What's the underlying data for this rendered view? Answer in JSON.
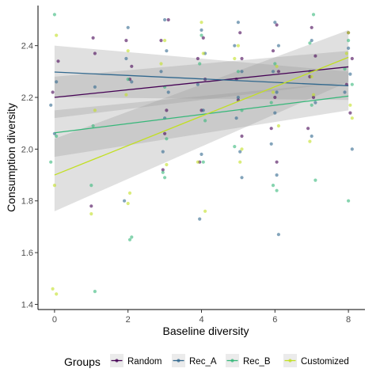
{
  "chart_data": {
    "type": "scatter",
    "title": "",
    "xlabel": "Baseline diversity",
    "ylabel": "Consumption diversity",
    "xlim": [
      -0.45,
      8.45
    ],
    "ylim": [
      1.38,
      2.555
    ],
    "x_ticks": [
      0,
      2,
      4,
      6,
      8
    ],
    "y_ticks": [
      1.4,
      1.6,
      1.8,
      2.0,
      2.2,
      2.4
    ],
    "y_tick_labels": [
      "1.4",
      "1.6",
      "1.8",
      "2.0",
      "2.2",
      "2.4"
    ],
    "grid": false,
    "legend": {
      "title": "Groups",
      "position": "bottom"
    },
    "series": [
      {
        "name": "Random",
        "color": "#440154",
        "fit": {
          "x": [
            0,
            8
          ],
          "y": [
            2.2,
            2.318
          ],
          "ci_low": [
            2.12,
            2.26
          ],
          "ci_high": [
            2.28,
            2.38
          ]
        },
        "points": [
          [
            0.1,
            2.34
          ],
          [
            -0.05,
            2.22
          ],
          [
            1.05,
            2.43
          ],
          [
            1.1,
            2.37
          ],
          [
            1.0,
            1.78
          ],
          [
            1.95,
            2.42
          ],
          [
            2.1,
            2.32
          ],
          [
            2.05,
            2.27
          ],
          [
            2.9,
            2.42
          ],
          [
            3.1,
            2.5
          ],
          [
            3.05,
            2.15
          ],
          [
            3.0,
            2.06
          ],
          [
            2.95,
            1.92
          ],
          [
            4.05,
            2.43
          ],
          [
            3.9,
            2.35
          ],
          [
            4.1,
            2.27
          ],
          [
            4.0,
            2.15
          ],
          [
            3.95,
            1.95
          ],
          [
            5.05,
            2.45
          ],
          [
            5.1,
            2.35
          ],
          [
            4.95,
            2.27
          ],
          [
            5.0,
            2.19
          ],
          [
            5.1,
            2.05
          ],
          [
            6.05,
            2.48
          ],
          [
            5.95,
            2.38
          ],
          [
            6.1,
            2.3
          ],
          [
            6.0,
            2.2
          ],
          [
            5.9,
            2.08
          ],
          [
            6.05,
            1.95
          ],
          [
            7.0,
            2.47
          ],
          [
            7.1,
            2.36
          ],
          [
            6.95,
            2.28
          ],
          [
            7.05,
            2.2
          ],
          [
            6.9,
            2.08
          ],
          [
            8.0,
            2.45
          ],
          [
            8.1,
            2.35
          ],
          [
            7.95,
            2.25
          ],
          [
            8.05,
            2.14
          ]
        ]
      },
      {
        "name": "Rec_A",
        "color": "#31688e",
        "fit": {
          "x": [
            0,
            8
          ],
          "y": [
            2.298,
            2.245
          ],
          "ci_low": [
            2.2,
            2.19
          ],
          "ci_high": [
            2.4,
            2.3
          ]
        },
        "points": [
          [
            0.05,
            2.26
          ],
          [
            -0.1,
            2.17
          ],
          [
            0.0,
            2.06
          ],
          [
            1.1,
            2.24
          ],
          [
            2.0,
            2.47
          ],
          [
            1.95,
            2.35
          ],
          [
            2.1,
            2.26
          ],
          [
            1.9,
            1.8
          ],
          [
            3.0,
            2.5
          ],
          [
            3.05,
            2.38
          ],
          [
            2.9,
            2.3
          ],
          [
            3.1,
            2.22
          ],
          [
            3.0,
            2.12
          ],
          [
            2.95,
            1.99
          ],
          [
            4.0,
            2.46
          ],
          [
            4.1,
            2.37
          ],
          [
            3.9,
            2.25
          ],
          [
            4.05,
            2.15
          ],
          [
            4.0,
            1.98
          ],
          [
            3.95,
            1.73
          ],
          [
            5.0,
            2.49
          ],
          [
            4.9,
            2.4
          ],
          [
            5.1,
            2.3
          ],
          [
            5.0,
            2.2
          ],
          [
            4.95,
            2.12
          ],
          [
            5.05,
            1.99
          ],
          [
            5.1,
            1.89
          ],
          [
            6.0,
            2.49
          ],
          [
            6.1,
            2.4
          ],
          [
            5.95,
            2.3
          ],
          [
            6.05,
            2.22
          ],
          [
            6.0,
            2.14
          ],
          [
            5.9,
            2.02
          ],
          [
            6.05,
            1.9
          ],
          [
            6.1,
            1.67
          ],
          [
            7.0,
            2.42
          ],
          [
            6.95,
            2.3
          ],
          [
            7.1,
            2.18
          ],
          [
            7.0,
            2.05
          ],
          [
            8.0,
            2.39
          ],
          [
            8.05,
            2.29
          ],
          [
            7.9,
            2.22
          ],
          [
            8.1,
            2.0
          ]
        ]
      },
      {
        "name": "Rec_B",
        "color": "#35b779",
        "fit": {
          "x": [
            0,
            8
          ],
          "y": [
            2.063,
            2.205
          ],
          "ci_low": [
            1.97,
            2.15
          ],
          "ci_high": [
            2.15,
            2.26
          ]
        },
        "points": [
          [
            0.0,
            2.52
          ],
          [
            0.05,
            2.05
          ],
          [
            -0.1,
            1.95
          ],
          [
            1.0,
            1.86
          ],
          [
            1.05,
            2.09
          ],
          [
            1.1,
            1.45
          ],
          [
            2.05,
            1.65
          ],
          [
            2.1,
            1.66
          ],
          [
            2.0,
            2.27
          ],
          [
            3.0,
            2.24
          ],
          [
            3.05,
            2.04
          ],
          [
            2.95,
            1.91
          ],
          [
            3.0,
            1.89
          ],
          [
            4.0,
            2.44
          ],
          [
            3.95,
            2.33
          ],
          [
            4.1,
            2.11
          ],
          [
            4.05,
            1.95
          ],
          [
            5.0,
            2.3
          ],
          [
            5.1,
            2.15
          ],
          [
            4.9,
            2.01
          ],
          [
            6.0,
            2.33
          ],
          [
            5.9,
            2.18
          ],
          [
            5.95,
            1.86
          ],
          [
            6.05,
            1.84
          ],
          [
            7.05,
            2.52
          ],
          [
            6.95,
            2.41
          ],
          [
            7.0,
            2.17
          ],
          [
            7.1,
            1.88
          ],
          [
            8.0,
            2.42
          ],
          [
            7.9,
            2.31
          ],
          [
            8.1,
            2.25
          ],
          [
            8.0,
            1.8
          ]
        ]
      },
      {
        "name": "Customized",
        "color": "#c2df23",
        "fit": {
          "x": [
            0,
            8
          ],
          "y": [
            1.9,
            2.355
          ],
          "ci_low": [
            1.76,
            2.26
          ],
          "ci_high": [
            2.04,
            2.46
          ]
        },
        "points": [
          [
            0.05,
            2.44
          ],
          [
            0.0,
            1.86
          ],
          [
            -0.05,
            1.46
          ],
          [
            0.05,
            1.44
          ],
          [
            1.0,
            1.75
          ],
          [
            1.1,
            2.15
          ],
          [
            2.05,
            1.83
          ],
          [
            2.0,
            1.79
          ],
          [
            1.95,
            2.21
          ],
          [
            2.0,
            2.38
          ],
          [
            3.0,
            2.42
          ],
          [
            2.9,
            2.33
          ],
          [
            3.05,
            1.94
          ],
          [
            4.0,
            2.49
          ],
          [
            4.05,
            2.37
          ],
          [
            3.9,
            1.95
          ],
          [
            4.1,
            1.76
          ],
          [
            5.0,
            2.4
          ],
          [
            4.9,
            2.35
          ],
          [
            5.05,
            1.95
          ],
          [
            5.1,
            2.0
          ],
          [
            6.05,
            2.32
          ],
          [
            5.95,
            2.22
          ],
          [
            6.1,
            2.09
          ],
          [
            7.0,
            2.28
          ],
          [
            7.05,
            2.21
          ],
          [
            6.95,
            2.03
          ],
          [
            8.0,
            2.45
          ],
          [
            7.95,
            2.37
          ],
          [
            8.05,
            2.17
          ],
          [
            8.1,
            2.12
          ]
        ]
      }
    ]
  }
}
